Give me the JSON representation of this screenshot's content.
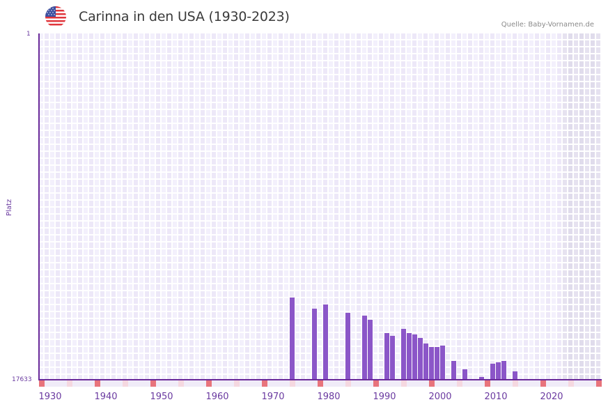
{
  "header": {
    "title": "Carinna in den USA (1930-2023)",
    "source": "Quelle: Baby-Vornamen.de",
    "flag_icon": "us-flag-icon"
  },
  "colors": {
    "bar": "#8b56c8",
    "axis": "#6a2a9a",
    "label": "#6a3aa0",
    "cell_a": "#ede8f8",
    "cell_b": "#f3f0fc",
    "future_cell_a": "#e0dcec",
    "future_cell_b": "#e6e2f0",
    "marker_decade": "#e8747c",
    "marker_half": "#f5d8e0",
    "marker_plain": "#f0ecf8"
  },
  "chart_data": {
    "type": "bar",
    "title": "Carinna in den USA (1930-2023)",
    "xlabel": "",
    "ylabel": "Platz",
    "ylim": [
      1,
      17633
    ],
    "y_inverted": true,
    "x_range": [
      1928,
      2028
    ],
    "xticks": [
      1930,
      1940,
      1950,
      1960,
      1970,
      1980,
      1990,
      2000,
      2010,
      2020
    ],
    "yticks": [
      1,
      17633
    ],
    "shaded_future_from": 2022,
    "categories": [
      1973,
      1977,
      1979,
      1983,
      1986,
      1987,
      1990,
      1991,
      1993,
      1994,
      1995,
      1996,
      1997,
      1998,
      1999,
      2000,
      2002,
      2004,
      2007,
      2009,
      2010,
      2011,
      2013
    ],
    "values": [
      13446,
      14013,
      13800,
      14226,
      14368,
      14581,
      15255,
      15397,
      15042,
      15255,
      15326,
      15503,
      15787,
      15965,
      15965,
      15894,
      16674,
      17100,
      17491,
      16816,
      16745,
      16674,
      17207
    ],
    "grid": true,
    "legend": null
  },
  "axis": {
    "y_top_label": "1",
    "y_bottom_label": "17633",
    "y_title": "Platz"
  }
}
